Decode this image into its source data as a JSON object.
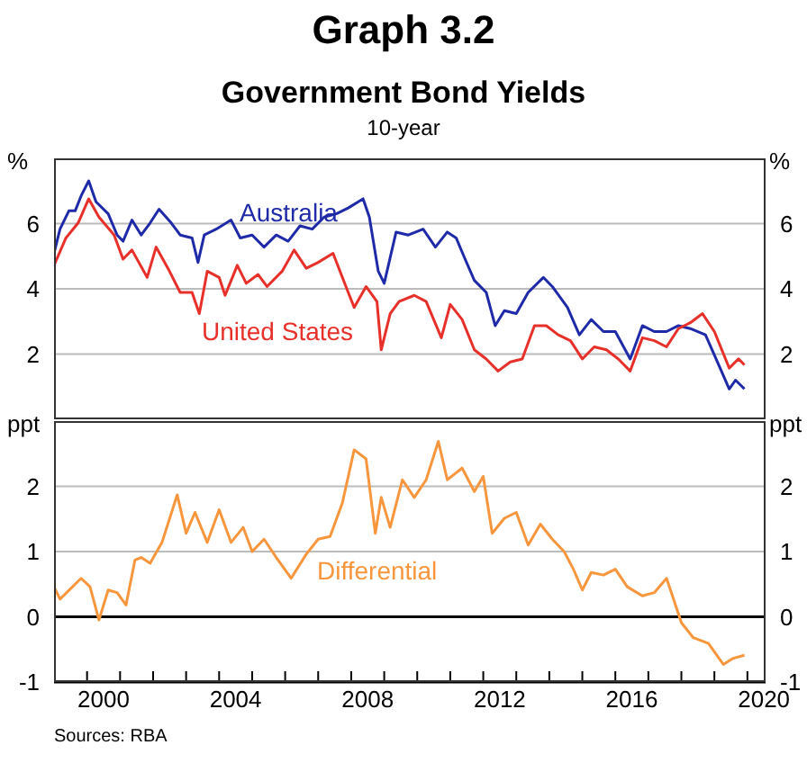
{
  "chart_data": [
    {
      "type": "line",
      "title": "Graph 3.2",
      "subtitle": "Government Bond Yields",
      "annotations": [
        "10-year"
      ],
      "ylabel": "%",
      "y2label": "%",
      "xlim": [
        1999,
        2020.55
      ],
      "ylim": [
        0,
        8
      ],
      "yticks": [
        2,
        4,
        6
      ],
      "y2lim": [
        0,
        8
      ],
      "y2ticks": [
        2,
        4,
        6
      ],
      "tick_labels": "y",
      "grid": "y",
      "series": [
        {
          "name": "Australia",
          "color": "#1f2aa8",
          "x": [
            1999.0,
            1999.18,
            1999.45,
            1999.64,
            1999.82,
            2000.05,
            2000.27,
            2000.64,
            2000.91,
            2001.09,
            2001.36,
            2001.64,
            2001.91,
            2002.18,
            2002.55,
            2002.82,
            2003.18,
            2003.36,
            2003.55,
            2003.91,
            2004.36,
            2004.64,
            2005.0,
            2005.36,
            2005.73,
            2006.09,
            2006.45,
            2006.82,
            2007.18,
            2007.55,
            2007.91,
            2008.36,
            2008.55,
            2008.82,
            2009.0,
            2009.36,
            2009.73,
            2010.18,
            2010.55,
            2010.91,
            2011.18,
            2011.45,
            2011.73,
            2012.09,
            2012.36,
            2012.64,
            2013.0,
            2013.36,
            2013.82,
            2014.09,
            2014.55,
            2014.91,
            2015.27,
            2015.64,
            2016.0,
            2016.45,
            2016.82,
            2017.18,
            2017.55,
            2017.91,
            2018.27,
            2018.73,
            2019.09,
            2019.45,
            2019.64,
            2019.91
          ],
          "values": [
            5.09,
            5.83,
            6.39,
            6.39,
            6.85,
            7.31,
            6.67,
            6.3,
            5.65,
            5.46,
            6.11,
            5.65,
            6.02,
            6.44,
            6.02,
            5.65,
            5.56,
            4.81,
            5.65,
            5.83,
            6.11,
            5.56,
            5.65,
            5.28,
            5.65,
            5.46,
            5.93,
            5.83,
            6.2,
            6.3,
            6.48,
            6.76,
            6.2,
            4.54,
            4.17,
            5.74,
            5.65,
            5.83,
            5.28,
            5.74,
            5.56,
            4.91,
            4.26,
            3.89,
            2.87,
            3.33,
            3.24,
            3.89,
            4.35,
            4.07,
            3.43,
            2.59,
            3.06,
            2.69,
            2.69,
            1.85,
            2.87,
            2.69,
            2.69,
            2.87,
            2.78,
            2.59,
            1.76,
            0.93,
            1.2,
            0.93
          ]
        },
        {
          "name": "United States",
          "color": "#e8302a",
          "x": [
            1999.0,
            1999.36,
            1999.73,
            2000.05,
            2000.36,
            2000.82,
            2001.09,
            2001.36,
            2001.82,
            2002.09,
            2002.45,
            2002.82,
            2003.18,
            2003.4,
            2003.64,
            2004.0,
            2004.18,
            2004.55,
            2004.82,
            2005.18,
            2005.45,
            2005.91,
            2006.27,
            2006.64,
            2007.0,
            2007.45,
            2007.91,
            2008.09,
            2008.45,
            2008.78,
            2008.91,
            2009.18,
            2009.45,
            2009.91,
            2010.27,
            2010.73,
            2011.0,
            2011.36,
            2011.73,
            2012.09,
            2012.45,
            2012.82,
            2013.18,
            2013.55,
            2013.91,
            2014.27,
            2014.64,
            2015.0,
            2015.36,
            2015.73,
            2016.09,
            2016.45,
            2016.82,
            2017.18,
            2017.55,
            2017.91,
            2018.27,
            2018.64,
            2019.0,
            2019.45,
            2019.73,
            2019.91
          ],
          "values": [
            4.72,
            5.56,
            6.02,
            6.76,
            6.2,
            5.65,
            4.91,
            5.19,
            4.35,
            5.28,
            4.63,
            3.89,
            3.89,
            3.24,
            4.54,
            4.35,
            3.8,
            4.72,
            4.17,
            4.44,
            4.07,
            4.54,
            5.19,
            4.63,
            4.81,
            5.09,
            3.89,
            3.43,
            4.07,
            3.61,
            2.13,
            3.24,
            3.61,
            3.8,
            3.61,
            2.5,
            3.52,
            3.06,
            2.13,
            1.85,
            1.48,
            1.76,
            1.85,
            2.87,
            2.87,
            2.59,
            2.41,
            1.85,
            2.22,
            2.13,
            1.85,
            1.48,
            2.5,
            2.41,
            2.22,
            2.78,
            2.96,
            3.24,
            2.69,
            1.57,
            1.85,
            1.67
          ]
        }
      ]
    },
    {
      "type": "line",
      "ylabel": "ppt",
      "y2label": "ppt",
      "xlim": [
        1999,
        2020.55
      ],
      "xticks": [
        {
          "value": 2000,
          "label": null
        },
        {
          "value": 2000.5,
          "label": "2000"
        },
        {
          "value": 2001,
          "label": null
        },
        {
          "value": 2002,
          "label": null
        },
        {
          "value": 2003,
          "label": null
        },
        {
          "value": 2004,
          "label": null
        },
        {
          "value": 2004.5,
          "label": "2004"
        },
        {
          "value": 2005,
          "label": null
        },
        {
          "value": 2006,
          "label": null
        },
        {
          "value": 2007,
          "label": null
        },
        {
          "value": 2008,
          "label": null
        },
        {
          "value": 2008.5,
          "label": "2008"
        },
        {
          "value": 2009,
          "label": null
        },
        {
          "value": 2010,
          "label": null
        },
        {
          "value": 2011,
          "label": null
        },
        {
          "value": 2012,
          "label": null
        },
        {
          "value": 2012.5,
          "label": "2012"
        },
        {
          "value": 2013,
          "label": null
        },
        {
          "value": 2014,
          "label": null
        },
        {
          "value": 2015,
          "label": null
        },
        {
          "value": 2016,
          "label": null
        },
        {
          "value": 2016.5,
          "label": "2016"
        },
        {
          "value": 2017,
          "label": null
        },
        {
          "value": 2018,
          "label": null
        },
        {
          "value": 2019,
          "label": null
        },
        {
          "value": 2020,
          "label": null
        },
        {
          "value": 2020.5,
          "label": "2020"
        }
      ],
      "ylim": [
        -1,
        3
      ],
      "yticks": [
        -1,
        0,
        1,
        2
      ],
      "y2lim": [
        -1,
        3
      ],
      "y2ticks": [
        -1,
        0,
        1,
        2
      ],
      "grid": "y",
      "ref_lines": [
        {
          "axis": "y",
          "value": 0,
          "color": "#000000"
        }
      ],
      "annotations": [
        "Sources: RBA"
      ],
      "series": [
        {
          "name": "Differential",
          "color": "#f7963d",
          "x": [
            1999.0,
            1999.18,
            1999.82,
            2000.09,
            2000.36,
            2000.64,
            2000.91,
            2001.18,
            2001.45,
            2001.64,
            2001.91,
            2002.27,
            2002.73,
            2003.0,
            2003.27,
            2003.64,
            2004.0,
            2004.36,
            2004.73,
            2005.0,
            2005.36,
            2005.73,
            2006.18,
            2006.64,
            2007.0,
            2007.36,
            2007.73,
            2008.09,
            2008.45,
            2008.73,
            2008.91,
            2009.18,
            2009.55,
            2009.91,
            2010.27,
            2010.64,
            2010.91,
            2011.36,
            2011.73,
            2012.0,
            2012.27,
            2012.64,
            2013.0,
            2013.36,
            2013.73,
            2014.09,
            2014.45,
            2014.73,
            2015.0,
            2015.27,
            2015.64,
            2016.0,
            2016.36,
            2016.82,
            2017.18,
            2017.55,
            2017.73,
            2018.0,
            2018.36,
            2018.82,
            2019.27,
            2019.55,
            2019.91
          ],
          "values": [
            0.46,
            0.27,
            0.59,
            0.46,
            -0.05,
            0.41,
            0.37,
            0.18,
            0.87,
            0.91,
            0.82,
            1.14,
            1.87,
            1.28,
            1.6,
            1.14,
            1.64,
            1.14,
            1.37,
            1.0,
            1.19,
            0.91,
            0.59,
            0.96,
            1.19,
            1.23,
            1.74,
            2.56,
            2.42,
            1.28,
            1.83,
            1.37,
            2.1,
            1.83,
            2.1,
            2.69,
            2.1,
            2.28,
            1.92,
            2.15,
            1.28,
            1.51,
            1.6,
            1.1,
            1.42,
            1.19,
            1.0,
            0.73,
            0.41,
            0.68,
            0.64,
            0.73,
            0.46,
            0.32,
            0.37,
            0.59,
            0.32,
            -0.09,
            -0.32,
            -0.41,
            -0.73,
            -0.64,
            -0.59
          ]
        }
      ]
    }
  ]
}
